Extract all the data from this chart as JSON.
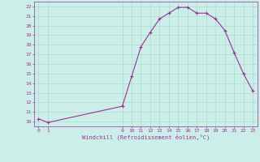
{
  "x": [
    0,
    1,
    9,
    10,
    11,
    12,
    13,
    14,
    15,
    16,
    17,
    18,
    19,
    20,
    21,
    22,
    23
  ],
  "y": [
    10.3,
    9.9,
    11.6,
    14.7,
    17.8,
    19.3,
    20.7,
    21.3,
    21.9,
    21.9,
    21.3,
    21.3,
    20.7,
    19.5,
    17.2,
    15.0,
    13.2
  ],
  "line_color": "#993399",
  "marker": "+",
  "background_color": "#cceee8",
  "grid_color": "#aaddcc",
  "text_color": "#993399",
  "xlabel": "Windchill (Refroidissement éolien,°C)",
  "xticks": [
    0,
    1,
    9,
    10,
    11,
    12,
    13,
    14,
    15,
    16,
    17,
    18,
    19,
    20,
    21,
    22,
    23
  ],
  "yticks": [
    10,
    11,
    12,
    13,
    14,
    15,
    16,
    17,
    18,
    19,
    20,
    21,
    22
  ],
  "ylim": [
    9.5,
    22.5
  ],
  "xlim": [
    -0.5,
    23.5
  ]
}
